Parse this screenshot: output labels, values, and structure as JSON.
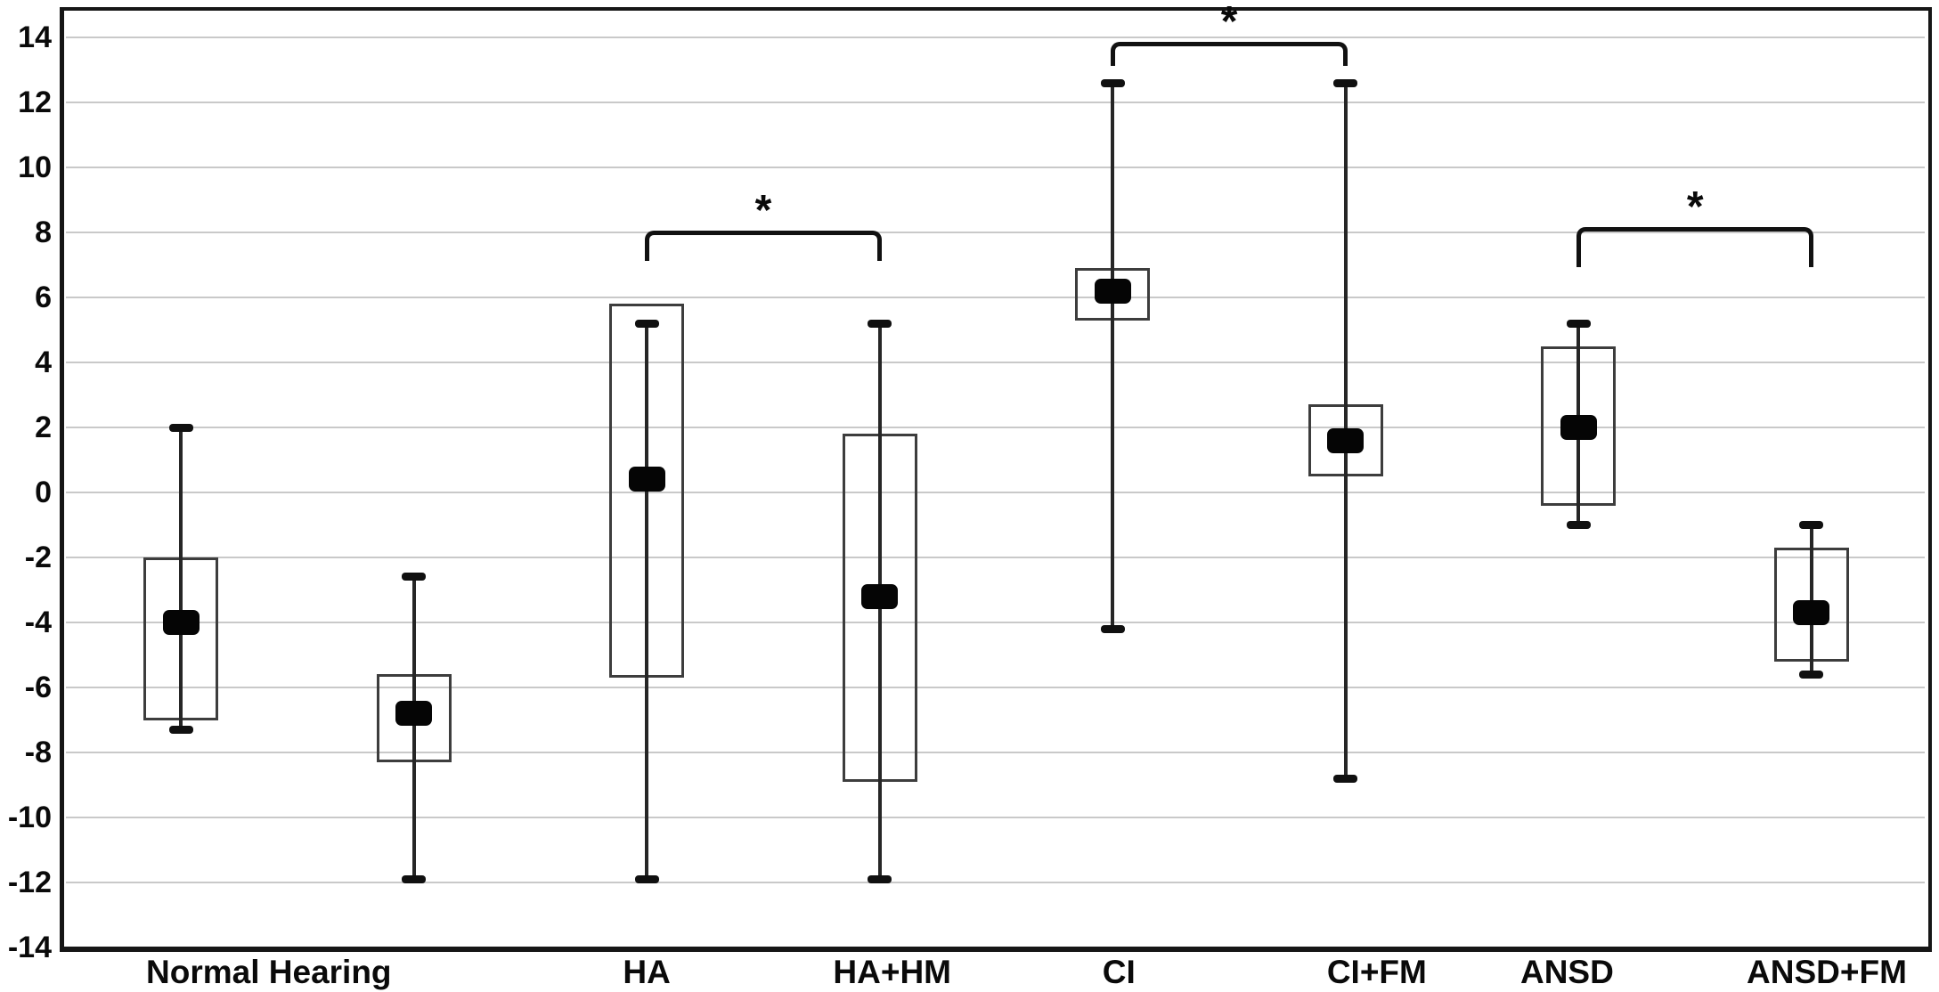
{
  "chart_data": {
    "type": "box",
    "title": "",
    "xlabel": "",
    "ylabel": "",
    "ylim": [
      -14,
      14
    ],
    "ytick_step": 2,
    "ytick_labels": [
      "14",
      "12",
      "10",
      "8",
      "6",
      "4",
      "2",
      "0",
      "-2",
      "-4",
      "-6",
      "-8",
      "-10",
      "-12",
      "-14"
    ],
    "grid": "horizontal-light-gray",
    "legend": "none",
    "boxes": [
      {
        "name": "Normal Hearing",
        "slot": 0,
        "whisker_top": 2.0,
        "q3": -2.0,
        "median": -4.0,
        "q1": -7.0,
        "whisker_bottom": -7.3
      },
      {
        "name": "",
        "slot": 1,
        "whisker_top": -2.6,
        "q3": -5.6,
        "median": -6.8,
        "q1": -8.3,
        "whisker_bottom": -11.9
      },
      {
        "name": "HA",
        "slot": 2,
        "whisker_top": 5.2,
        "q3": 5.8,
        "median": 0.4,
        "q1": -5.7,
        "whisker_bottom": -11.9
      },
      {
        "name": "HA+HM",
        "slot": 3,
        "whisker_top": 5.2,
        "q3": 1.8,
        "median": -3.2,
        "q1": -8.9,
        "whisker_bottom": -11.9
      },
      {
        "name": "CI",
        "slot": 4,
        "whisker_top": 12.6,
        "q3": 6.9,
        "median": 6.2,
        "q1": 5.3,
        "whisker_bottom": -4.2
      },
      {
        "name": "CI+FM",
        "slot": 5,
        "whisker_top": 12.6,
        "q3": 2.7,
        "median": 1.6,
        "q1": 0.5,
        "whisker_bottom": -8.8
      },
      {
        "name": "ANSD",
        "slot": 6,
        "whisker_top": 5.2,
        "q3": 4.5,
        "median": 2.0,
        "q1": -0.4,
        "whisker_bottom": -1.0
      },
      {
        "name": "ANSD+FM",
        "slot": 7,
        "whisker_top": -1.0,
        "q3": -1.7,
        "median": -3.7,
        "q1": -5.2,
        "whisker_bottom": -5.6
      }
    ],
    "x_axis_labels": [
      {
        "text": "Normal Hearing",
        "slots": [
          0,
          1
        ],
        "dx": -32
      },
      {
        "text": "HA",
        "slots": [
          2
        ],
        "dx": 0
      },
      {
        "text": "HA+HM",
        "slots": [
          3
        ],
        "dx": 14
      },
      {
        "text": "CI",
        "slots": [
          4
        ],
        "dx": 7
      },
      {
        "text": "CI+FM",
        "slots": [
          5
        ],
        "dx": 35
      },
      {
        "text": "ANSD",
        "slots": [
          6
        ],
        "dx": -13
      },
      {
        "text": "ANSD+FM",
        "slots": [
          7
        ],
        "dx": 17
      }
    ],
    "significance_brackets": [
      {
        "from_slot": 2,
        "to_slot": 3,
        "label": "*",
        "y_value": 8.0,
        "tick_bottom_value": 7.2
      },
      {
        "from_slot": 4,
        "to_slot": 5,
        "label": "*",
        "y_value": 13.8,
        "tick_bottom_value": 13.2
      },
      {
        "from_slot": 6,
        "to_slot": 7,
        "label": "*",
        "y_value": 8.1,
        "tick_bottom_value": 7.0
      }
    ],
    "colors": {
      "background": "#ffffff",
      "axis_frame": "#161616",
      "gridline": "#c9c9c9",
      "box_border": "#3d3d3d",
      "whisker": "#262626",
      "median_fill": "#050505",
      "text": "#0a0a0a"
    }
  }
}
